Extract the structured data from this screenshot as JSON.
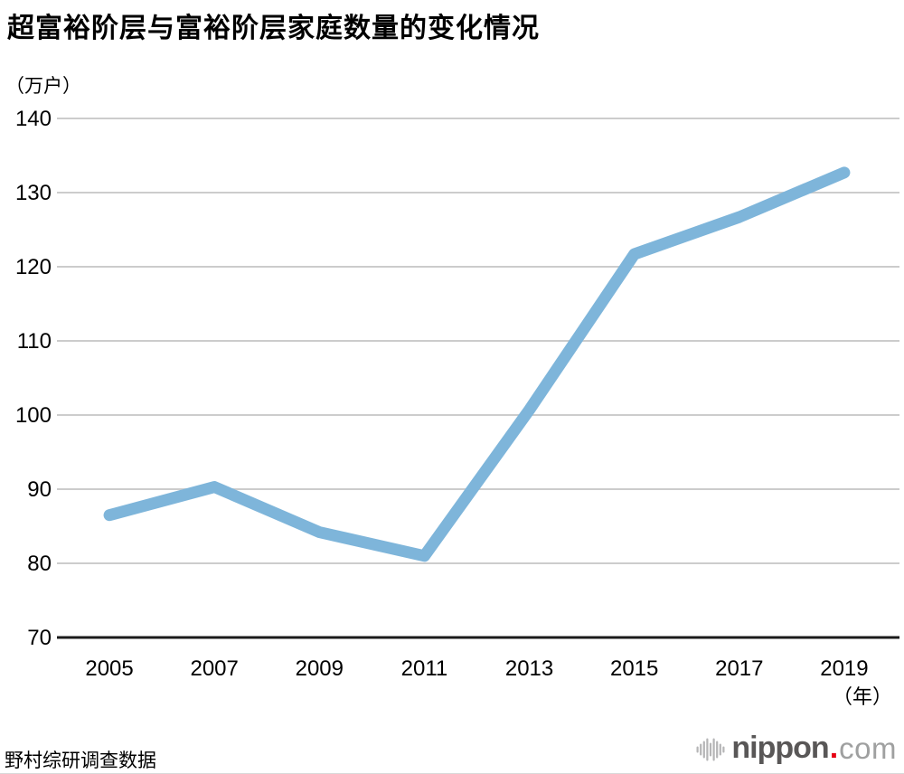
{
  "page": {
    "source_note": "野村综研调查数据",
    "logo": {
      "brand": "nippon",
      "dot": ".",
      "tld": "com"
    }
  },
  "chart_data": {
    "type": "line",
    "title": "超富裕阶层与富裕阶层家庭数量的变化情况",
    "unit_label": "（万户）",
    "x_axis_label": "（年）",
    "categories": [
      "2005",
      "2007",
      "2009",
      "2011",
      "2013",
      "2015",
      "2017",
      "2019"
    ],
    "values": [
      86.5,
      90.3,
      84.2,
      81.0,
      100.7,
      121.7,
      126.7,
      132.7
    ],
    "ylim": [
      70,
      140
    ],
    "ytick_step": 10,
    "grid": "horizontal",
    "legend": "none",
    "line_color": "#7eb5da",
    "grid_color": "#cccccc",
    "axis_color": "#1a1a1a"
  }
}
